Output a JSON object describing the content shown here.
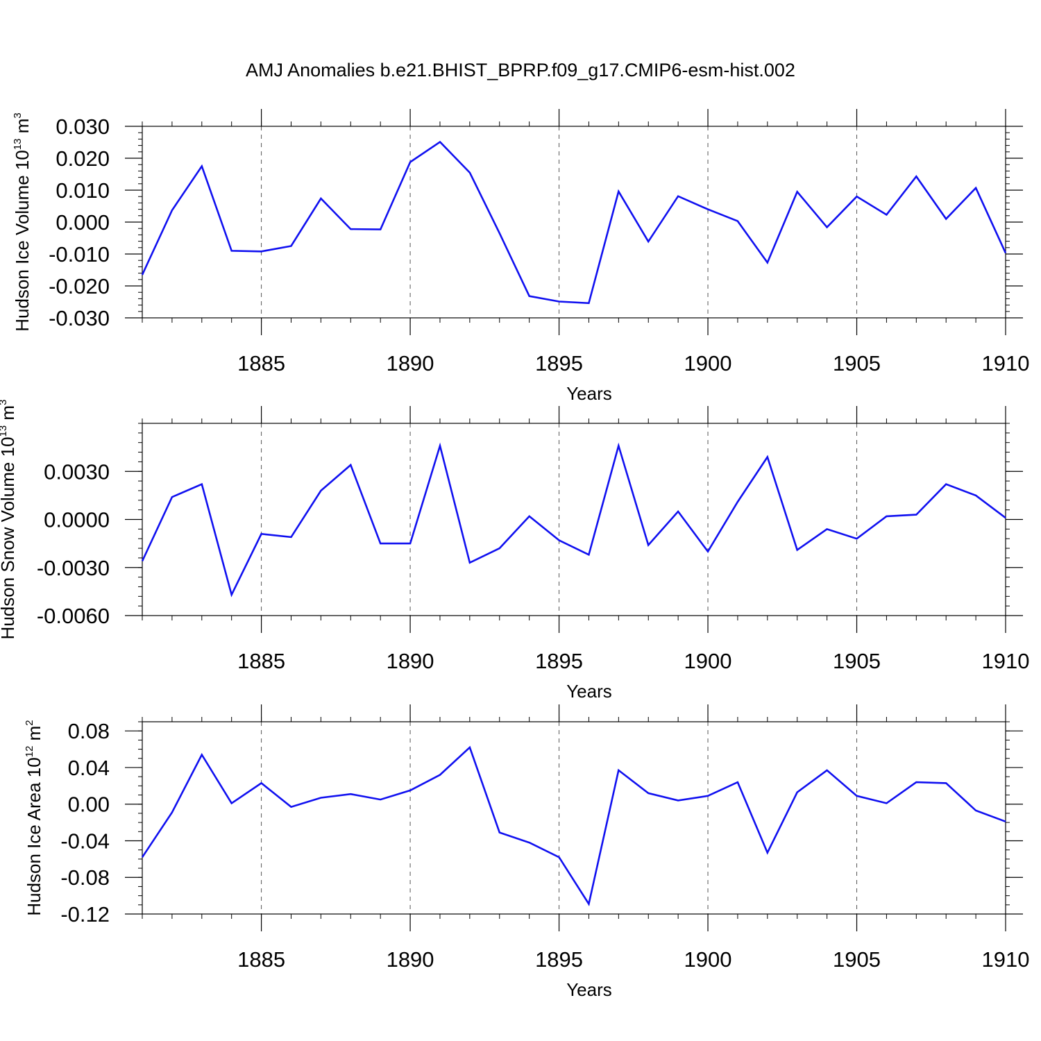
{
  "figure_title": "AMJ Anomalies b.e21.BHIST_BPRP.f09_g17.CMIP6-esm-hist.002",
  "series_color": "#1010f0",
  "chart_data": [
    {
      "type": "line",
      "ylabel_main": "Hudson Ice Volume 10",
      "ylabel_exp": "13",
      "ylabel_unit": " m",
      "ylabel_unit_exp": "3",
      "xlabel": "Years",
      "xlim": [
        1881,
        1910
      ],
      "ylim": [
        -0.03,
        0.03
      ],
      "yticks": [
        -0.03,
        -0.02,
        -0.01,
        0.0,
        0.01,
        0.02,
        0.03
      ],
      "ytick_labels": [
        "-0.030",
        "-0.020",
        "-0.010",
        "0.000",
        "0.010",
        "0.020",
        "0.030"
      ],
      "yminor_step": 0.002,
      "xticks": [
        1885,
        1890,
        1895,
        1900,
        1905,
        1910
      ],
      "xtick_labels": [
        "1885",
        "1890",
        "1895",
        "1900",
        "1905",
        "1910"
      ],
      "grid_x": true,
      "x": [
        1881,
        1882,
        1883,
        1884,
        1885,
        1886,
        1887,
        1888,
        1889,
        1890,
        1891,
        1892,
        1893,
        1894,
        1895,
        1896,
        1897,
        1898,
        1899,
        1900,
        1901,
        1902,
        1903,
        1904,
        1905,
        1906,
        1907,
        1908,
        1909,
        1910
      ],
      "y": [
        -0.0165,
        0.0037,
        0.0175,
        -0.009,
        -0.0092,
        -0.0075,
        0.0074,
        -0.0022,
        -0.0023,
        0.0188,
        0.0251,
        0.0155,
        -0.0035,
        -0.0232,
        -0.0249,
        -0.0254,
        0.0096,
        -0.0061,
        0.0081,
        0.004,
        0.0003,
        -0.0127,
        0.0095,
        -0.0016,
        0.008,
        0.0023,
        0.0143,
        0.001,
        0.0107,
        -0.0097
      ]
    },
    {
      "type": "line",
      "ylabel_main": "Hudson Snow Volume 10",
      "ylabel_exp": "13",
      "ylabel_unit": " m",
      "ylabel_unit_exp": "3",
      "xlabel": "Years",
      "xlim": [
        1881,
        1910
      ],
      "ylim": [
        -0.006,
        0.006
      ],
      "yticks": [
        -0.006,
        -0.003,
        0.0,
        0.003
      ],
      "ytick_labels": [
        "-0.0060",
        "-0.0030",
        "0.0000",
        "0.0030"
      ],
      "yminor_step": 0.0006,
      "xticks": [
        1885,
        1890,
        1895,
        1900,
        1905,
        1910
      ],
      "xtick_labels": [
        "1885",
        "1890",
        "1895",
        "1900",
        "1905",
        "1910"
      ],
      "grid_x": true,
      "x": [
        1881,
        1882,
        1883,
        1884,
        1885,
        1886,
        1887,
        1888,
        1889,
        1890,
        1891,
        1892,
        1893,
        1894,
        1895,
        1896,
        1897,
        1898,
        1899,
        1900,
        1901,
        1902,
        1903,
        1904,
        1905,
        1906,
        1907,
        1908,
        1909,
        1910
      ],
      "y": [
        -0.0026,
        0.0014,
        0.0022,
        -0.0047,
        -0.0009,
        -0.0011,
        0.0018,
        0.0034,
        -0.0015,
        -0.0015,
        0.0046,
        -0.0027,
        -0.0018,
        0.0002,
        -0.0013,
        -0.0022,
        0.0046,
        -0.0016,
        0.0005,
        -0.002,
        0.0011,
        0.0039,
        -0.0019,
        -0.0006,
        -0.0012,
        0.0002,
        0.0003,
        0.0022,
        0.0015,
        0.0001
      ]
    },
    {
      "type": "line",
      "ylabel_main": "Hudson Ice Area 10",
      "ylabel_exp": "12",
      "ylabel_unit": " m",
      "ylabel_unit_exp": "2",
      "xlabel": "Years",
      "xlim": [
        1881,
        1910
      ],
      "ylim": [
        -0.12,
        0.09
      ],
      "yticks": [
        -0.12,
        -0.08,
        -0.04,
        0.0,
        0.04,
        0.08
      ],
      "ytick_labels": [
        "-0.12",
        "-0.08",
        "-0.04",
        "0.00",
        "0.04",
        "0.08"
      ],
      "yminor_step": 0.01,
      "xticks": [
        1885,
        1890,
        1895,
        1900,
        1905,
        1910
      ],
      "xtick_labels": [
        "1885",
        "1890",
        "1895",
        "1900",
        "1905",
        "1910"
      ],
      "grid_x": true,
      "x": [
        1881,
        1882,
        1883,
        1884,
        1885,
        1886,
        1887,
        1888,
        1889,
        1890,
        1891,
        1892,
        1893,
        1894,
        1895,
        1896,
        1897,
        1898,
        1899,
        1900,
        1901,
        1902,
        1903,
        1904,
        1905,
        1906,
        1907,
        1908,
        1909,
        1910
      ],
      "y": [
        -0.058,
        -0.009,
        0.054,
        0.001,
        0.023,
        -0.003,
        0.007,
        0.011,
        0.005,
        0.015,
        0.032,
        0.062,
        -0.031,
        -0.042,
        -0.058,
        -0.109,
        0.037,
        0.012,
        0.004,
        0.009,
        0.024,
        -0.053,
        0.013,
        0.037,
        0.009,
        0.001,
        0.024,
        0.023,
        -0.007,
        -0.019
      ]
    }
  ]
}
